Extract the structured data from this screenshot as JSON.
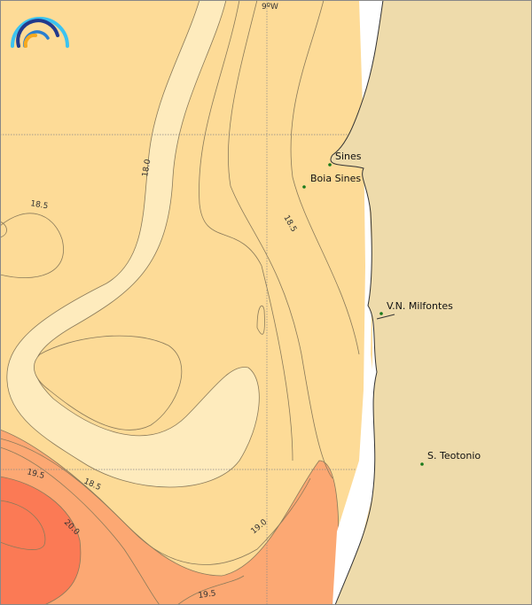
{
  "map": {
    "longitude_label": "9ºW",
    "colors": {
      "band_18_18_5": "#fddb97",
      "band_below_18": "#feebbd",
      "band_19_19_5": "#fca873",
      "band_above_20": "#fb7a55",
      "land": "#eedbab",
      "coastline": "#333333"
    },
    "contour_labels": [
      "18.0",
      "18.5",
      "18.5",
      "19.5",
      "18.5",
      "20.0",
      "19.0",
      "19.5"
    ],
    "places": [
      {
        "name": "Sines"
      },
      {
        "name": "Boia Sines"
      },
      {
        "name": "V.N. Milfontes"
      },
      {
        "name": "S. Teotonio"
      }
    ],
    "logo": "arcs-logo-icon"
  }
}
